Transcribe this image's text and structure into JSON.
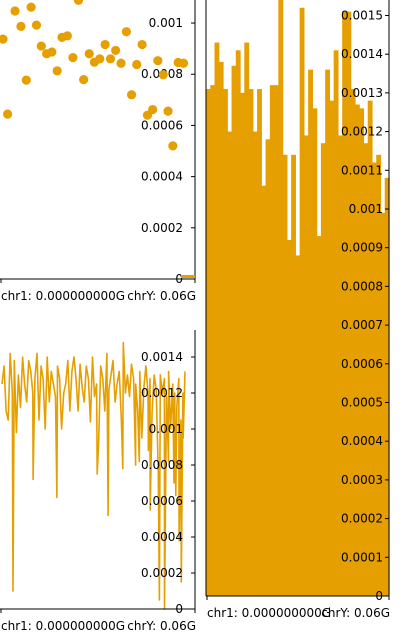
{
  "colors": {
    "series": "#e69f00",
    "axis": "#000000",
    "background": "#ffffff"
  },
  "chart_data": [
    {
      "type": "scatter",
      "panel": "top-left",
      "ylim": [
        0,
        0.00109
      ],
      "yticks": [
        {
          "v": 0.001,
          "label": "0.001"
        },
        {
          "v": 0.0008,
          "label": "0.0008"
        },
        {
          "v": 0.0006,
          "label": "0.0006"
        },
        {
          "v": 0.0004,
          "label": "0.0004"
        },
        {
          "v": 0.0002,
          "label": "0.0002"
        },
        {
          "v": 0,
          "label": "0"
        }
      ],
      "xlabels": [
        "chr1: 0.000000000G",
        "chrY: 0.06G"
      ],
      "points": [
        [
          0.0,
          0.000937
        ],
        [
          0.025,
          0.000644
        ],
        [
          0.065,
          0.001047
        ],
        [
          0.097,
          0.000987
        ],
        [
          0.126,
          0.000777
        ],
        [
          0.152,
          0.001062
        ],
        [
          0.181,
          0.000992
        ],
        [
          0.207,
          0.00091
        ],
        [
          0.236,
          0.00088
        ],
        [
          0.264,
          0.000887
        ],
        [
          0.293,
          0.000813
        ],
        [
          0.319,
          0.000944
        ],
        [
          0.348,
          0.00095
        ],
        [
          0.378,
          0.000865
        ],
        [
          0.408,
          0.001089
        ],
        [
          0.436,
          0.000779
        ],
        [
          0.466,
          0.00088
        ],
        [
          0.494,
          0.000847
        ],
        [
          0.523,
          0.00086
        ],
        [
          0.552,
          0.000916
        ],
        [
          0.581,
          0.00086
        ],
        [
          0.609,
          0.000893
        ],
        [
          0.638,
          0.000843
        ],
        [
          0.667,
          0.000966
        ],
        [
          0.695,
          0.00072
        ],
        [
          0.723,
          0.000838
        ],
        [
          0.752,
          0.000916
        ],
        [
          0.781,
          0.00064
        ],
        [
          0.809,
          0.000662
        ],
        [
          0.837,
          0.000853
        ],
        [
          0.866,
          0.000798
        ],
        [
          0.892,
          0.000656
        ],
        [
          0.918,
          0.00052
        ],
        [
          0.947,
          0.000846
        ],
        [
          0.976,
          0.000843
        ]
      ]
    },
    {
      "type": "area",
      "panel": "right",
      "ylim": [
        0,
        0.00154
      ],
      "yticks": [
        {
          "v": 0.0015,
          "label": "0.0015"
        },
        {
          "v": 0.0014,
          "label": "0.0014"
        },
        {
          "v": 0.0013,
          "label": "0.0013"
        },
        {
          "v": 0.0012,
          "label": "0.0012"
        },
        {
          "v": 0.0011,
          "label": "0.0011"
        },
        {
          "v": 0.001,
          "label": "0.001"
        },
        {
          "v": 0.0009,
          "label": "0.0009"
        },
        {
          "v": 0.0008,
          "label": "0.0008"
        },
        {
          "v": 0.0007,
          "label": "0.0007"
        },
        {
          "v": 0.0006,
          "label": "0.0006"
        },
        {
          "v": 0.0005,
          "label": "0.0005"
        },
        {
          "v": 0.0004,
          "label": "0.0004"
        },
        {
          "v": 0.0003,
          "label": "0.0003"
        },
        {
          "v": 0.0002,
          "label": "0.0002"
        },
        {
          "v": 0.0001,
          "label": "0.0001"
        },
        {
          "v": 0,
          "label": "0"
        }
      ],
      "xlabels": [
        "chr1: 0.000000000G",
        "chrY: 0.06G"
      ],
      "values": [
        0.00131,
        0.00132,
        0.00143,
        0.00138,
        0.00131,
        0.0012,
        0.00137,
        0.00141,
        0.0013,
        0.00143,
        0.00131,
        0.0012,
        0.00131,
        0.00106,
        0.00118,
        0.00132,
        0.00132,
        0.00154,
        0.00114,
        0.00092,
        0.00114,
        0.00088,
        0.00152,
        0.00119,
        0.00136,
        0.00126,
        0.00093,
        0.00117,
        0.00136,
        0.00128,
        0.00141,
        0.00119,
        0.00151,
        0.00151,
        0.00131,
        0.00127,
        0.00126,
        0.00117,
        0.00128,
        0.00112,
        0.00114,
        0.00099,
        0.00108
      ]
    },
    {
      "type": "line",
      "panel": "bottom-left",
      "ylim": [
        0,
        0.00155
      ],
      "yticks": [
        {
          "v": 0.0014,
          "label": "0.0014"
        },
        {
          "v": 0.0012,
          "label": "0.0012"
        },
        {
          "v": 0.001,
          "label": "0.001"
        },
        {
          "v": 0.0008,
          "label": "0.0008"
        },
        {
          "v": 0.0006,
          "label": "0.0006"
        },
        {
          "v": 0.0004,
          "label": "0.0004"
        },
        {
          "v": 0.0002,
          "label": "0.0002"
        },
        {
          "v": 0,
          "label": "0"
        }
      ],
      "xlabels": [
        "chr1: 0.000000000G",
        "chrY: 0.06G"
      ],
      "values": [
        0.00125,
        0.00135,
        0.0011,
        0.00105,
        0.00142,
        0.0012,
        0.00138,
        0.00098,
        0.0013,
        0.00112,
        0.0014,
        0.00125,
        0.00115,
        0.00138,
        0.00132,
        0.0012,
        0.00128,
        0.00142,
        0.00105,
        0.00135,
        0.00128,
        0.001,
        0.0014,
        0.00115,
        0.00132,
        0.00125,
        0.00118,
        0.00135,
        0.00128,
        0.001,
        0.0012,
        0.00125,
        0.00138,
        0.0011,
        0.00132,
        0.0014,
        0.00128,
        0.0011,
        0.00136,
        0.00123,
        0.00115,
        0.00135,
        0.00128,
        0.00104,
        0.0014,
        0.00118,
        0.00125,
        0.00092,
        0.00135,
        0.00128,
        0.0011,
        0.00142,
        0.00122,
        0.0013,
        0.00138,
        0.00115,
        0.00125,
        0.00132,
        0.00106,
        0.00148,
        0.0012,
        0.0013,
        0.00118,
        0.00136,
        0.00128,
        0.00125,
        0.0011,
        0.00132,
        0.00095,
        0.00123,
        0.00135,
        0.0012,
        0.00128,
        0.0011,
        0.0013,
        0.00122,
        0.00075,
        0.0013,
        0.0012,
        0.00128,
        0.00118,
        0.00132,
        0.001,
        0.00125,
        0.0012,
        0.00112,
        0.00128,
        0.00105,
        0.0012,
        0.00132
      ],
      "dips": [
        {
          "x": 0.06,
          "v": 0.0001
        },
        {
          "x": 0.17,
          "v": 0.00072
        },
        {
          "x": 0.3,
          "v": 0.00062
        },
        {
          "x": 0.52,
          "v": 0.00075
        },
        {
          "x": 0.58,
          "v": 0.00052
        },
        {
          "x": 0.66,
          "v": 0.00078
        },
        {
          "x": 0.73,
          "v": 0.0008
        },
        {
          "x": 0.75,
          "v": 0.00082
        },
        {
          "x": 0.8,
          "v": 0.00088
        },
        {
          "x": 0.81,
          "v": 0.00055
        },
        {
          "x": 0.86,
          "v": 5e-05
        },
        {
          "x": 0.888,
          "v": 0.0
        },
        {
          "x": 0.91,
          "v": 0.00082
        },
        {
          "x": 0.94,
          "v": 0.0007
        },
        {
          "x": 0.95,
          "v": 0.00063
        },
        {
          "x": 0.968,
          "v": 0.00038
        },
        {
          "x": 0.98,
          "v": 0.00015
        },
        {
          "x": 0.99,
          "v": 0.00095
        }
      ]
    }
  ]
}
